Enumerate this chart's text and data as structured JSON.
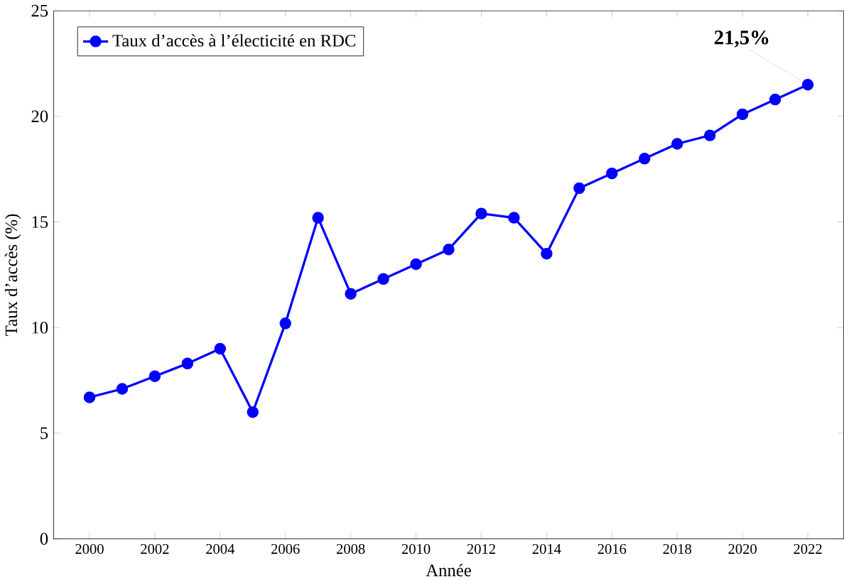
{
  "chart_data": {
    "type": "line",
    "xlabel": "Année",
    "ylabel": "Taux d’accès (%)",
    "x": [
      2000,
      2001,
      2002,
      2003,
      2004,
      2005,
      2006,
      2007,
      2008,
      2009,
      2010,
      2011,
      2012,
      2013,
      2014,
      2015,
      2016,
      2017,
      2018,
      2019,
      2020,
      2021,
      2022
    ],
    "series": [
      {
        "name": "Taux d’accès à l’électicité en RDC",
        "color": "#0000ff",
        "values": [
          6.7,
          7.1,
          7.7,
          8.3,
          9.0,
          6.0,
          10.2,
          15.2,
          11.6,
          12.3,
          13.0,
          13.7,
          15.4,
          15.2,
          13.5,
          16.6,
          17.3,
          18.0,
          18.7,
          19.1,
          20.1,
          20.8,
          21.5
        ]
      }
    ],
    "xlim": [
      1998.9,
      2023.1
    ],
    "ylim": [
      0,
      25
    ],
    "xticks": [
      2000,
      2002,
      2004,
      2006,
      2008,
      2010,
      2012,
      2014,
      2016,
      2018,
      2020,
      2022
    ],
    "yticks": [
      0,
      5,
      10,
      15,
      20,
      25
    ],
    "annotations": [
      {
        "text": "21,5%",
        "x": 2022,
        "y": 21.5
      }
    ],
    "legend": "top left",
    "marker": "circle",
    "line_style": "solid",
    "grid": false
  }
}
